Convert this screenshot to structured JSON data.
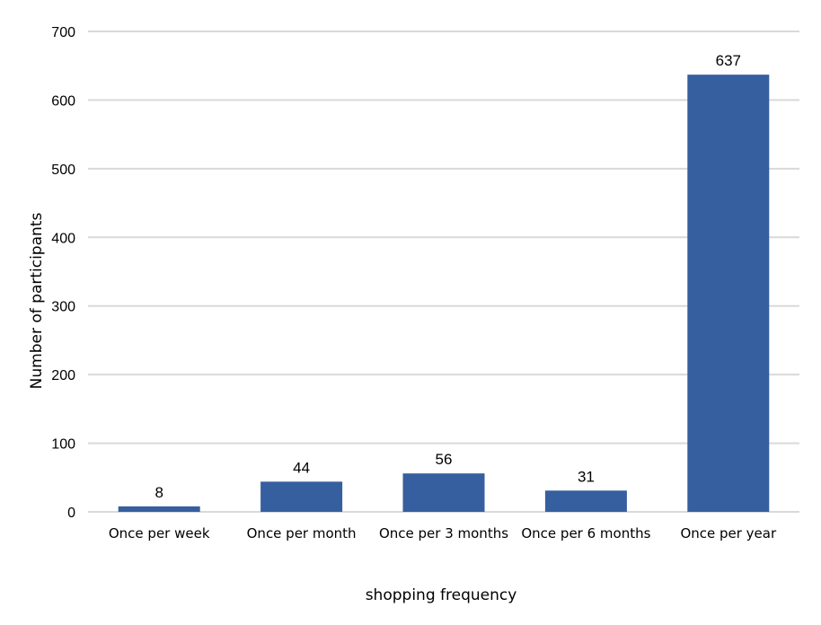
{
  "chart_data": {
    "type": "bar",
    "categories": [
      "Once per week",
      "Once per month",
      "Once per 3 months",
      "Once per 6 months",
      "Once per year"
    ],
    "values": [
      8,
      44,
      56,
      31,
      637
    ],
    "data_labels": [
      "8",
      "44",
      "56",
      "31",
      "637"
    ],
    "title": "",
    "xlabel": "shopping frequency",
    "ylabel": "Number of participants",
    "ylim": [
      0,
      700
    ],
    "yticks": [
      0,
      100,
      200,
      300,
      400,
      500,
      600,
      700
    ],
    "ytick_labels": [
      "0",
      "100",
      "200",
      "300",
      "400",
      "500",
      "600",
      "700"
    ],
    "grid": true,
    "legend": "none",
    "bar_color": "#365f9f",
    "grid_color": "#d9d9d9"
  }
}
